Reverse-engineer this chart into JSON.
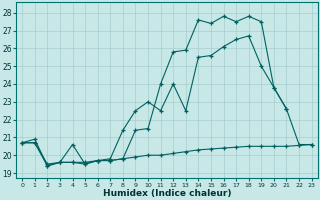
{
  "xlabel": "Humidex (Indice chaleur)",
  "bg_color": "#c8e8e8",
  "grid_color": "#a8cccc",
  "line_color": "#006060",
  "xlim": [
    -0.5,
    23.5
  ],
  "ylim": [
    18.7,
    28.6
  ],
  "yticks": [
    19,
    20,
    21,
    22,
    23,
    24,
    25,
    26,
    27,
    28
  ],
  "xticks": [
    0,
    1,
    2,
    3,
    4,
    5,
    6,
    7,
    8,
    9,
    10,
    11,
    12,
    13,
    14,
    15,
    16,
    17,
    18,
    19,
    20,
    21,
    22,
    23
  ],
  "line1_x": [
    0,
    1,
    2,
    3,
    4,
    5,
    6,
    7,
    8,
    9,
    10,
    11,
    12,
    13,
    14,
    15,
    16,
    17,
    18,
    19,
    20,
    21,
    22,
    23
  ],
  "line1_y": [
    20.7,
    20.7,
    19.4,
    19.6,
    19.6,
    19.5,
    19.7,
    19.7,
    19.8,
    21.4,
    21.5,
    24.0,
    25.8,
    25.9,
    27.6,
    27.4,
    27.8,
    27.5,
    27.8,
    27.5,
    23.8,
    22.6,
    20.6,
    20.6
  ],
  "line2_x": [
    0,
    1,
    2,
    3,
    4,
    5,
    6,
    7,
    8,
    9,
    10,
    11,
    12,
    13,
    14,
    15,
    16,
    17,
    18,
    19,
    20,
    21
  ],
  "line2_y": [
    20.7,
    20.9,
    19.4,
    19.6,
    20.6,
    19.5,
    19.7,
    19.8,
    21.4,
    22.5,
    23.0,
    22.5,
    24.0,
    22.5,
    25.5,
    25.6,
    26.1,
    26.5,
    26.7,
    25.0,
    23.8,
    22.6
  ],
  "line3_x": [
    0,
    1,
    2,
    3,
    4,
    5,
    6,
    7,
    8,
    9,
    10,
    11,
    12,
    13,
    14,
    15,
    16,
    17,
    18,
    19,
    20,
    21,
    22,
    23
  ],
  "line3_y": [
    20.7,
    20.7,
    19.5,
    19.6,
    19.6,
    19.6,
    19.7,
    19.7,
    19.8,
    19.9,
    20.0,
    20.0,
    20.1,
    20.2,
    20.3,
    20.35,
    20.4,
    20.45,
    20.5,
    20.5,
    20.5,
    20.5,
    20.55,
    20.6
  ]
}
